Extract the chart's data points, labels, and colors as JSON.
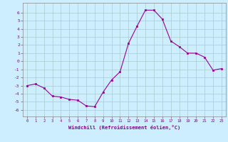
{
  "x": [
    0,
    1,
    2,
    3,
    4,
    5,
    6,
    7,
    8,
    9,
    10,
    11,
    12,
    13,
    14,
    15,
    16,
    17,
    18,
    19,
    20,
    21,
    22,
    23
  ],
  "y": [
    -3.0,
    -2.8,
    -3.3,
    -4.3,
    -4.4,
    -4.7,
    -4.8,
    -5.5,
    -5.6,
    -3.8,
    -2.3,
    -1.3,
    2.2,
    4.3,
    6.3,
    6.3,
    5.2,
    2.5,
    1.8,
    1.0,
    1.0,
    0.5,
    -1.1,
    -0.9
  ],
  "line_color": "#990099",
  "marker_color": "#990099",
  "bg_color": "#cceeff",
  "grid_color": "#aacccc",
  "xlabel": "Windchill (Refroidissement éolien,°C)",
  "ylabel_ticks": [
    6,
    5,
    4,
    3,
    2,
    1,
    0,
    -1,
    -2,
    -3,
    -4,
    -5,
    -6
  ],
  "xlim": [
    -0.5,
    23.5
  ],
  "ylim": [
    -6.8,
    7.2
  ],
  "font_color": "#880088"
}
